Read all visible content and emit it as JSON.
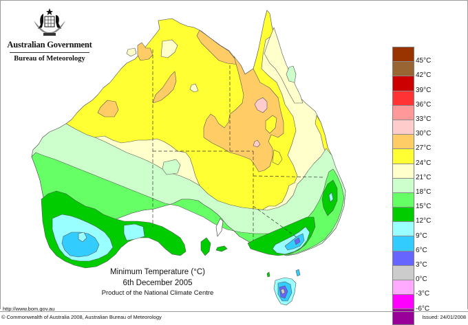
{
  "header": {
    "government": "Australian Government",
    "bureau": "Bureau of Meteorology",
    "crest_icon": "commonwealth-coat-of-arms-icon"
  },
  "title": {
    "line1": "Minimum Temperature (°C)",
    "line2": "6th December 2005",
    "line3": "Product of the National Climate Centre"
  },
  "footer": {
    "url": "http://www.bom.gov.au",
    "copyright": "© Commonwealth of Australia 2008, Australian Bureau of Meteorology",
    "issued": "Issued: 24/01/2008"
  },
  "legend": {
    "unit": "°C",
    "swatches": [
      {
        "color": "#993300"
      },
      {
        "color": "#996633"
      },
      {
        "color": "#cc0000"
      },
      {
        "color": "#ff3333"
      },
      {
        "color": "#ff9999"
      },
      {
        "color": "#ffcccc"
      },
      {
        "color": "#ffcc66"
      },
      {
        "color": "#ffff33"
      },
      {
        "color": "#ffffcc"
      },
      {
        "color": "#ccffcc"
      },
      {
        "color": "#66ff66"
      },
      {
        "color": "#00cc00"
      },
      {
        "color": "#99ffff"
      },
      {
        "color": "#33ccff"
      },
      {
        "color": "#6666ff"
      },
      {
        "color": "#cccccc"
      },
      {
        "color": "#ffaaff"
      },
      {
        "color": "#ff00ff"
      },
      {
        "color": "#990099"
      }
    ],
    "ticks": [
      "45°C",
      "42°C",
      "39°C",
      "36°C",
      "33°C",
      "30°C",
      "27°C",
      "24°C",
      "21°C",
      "18°C",
      "15°C",
      "12°C",
      "9°C",
      "6°C",
      "3°C",
      "0°C",
      "-3°C",
      "-6°C"
    ]
  },
  "map": {
    "region": "Australia",
    "variable": "Daily minimum temperature",
    "date": "6th December 2005",
    "notable_zones": [
      {
        "area": "Northern Territory / Gulf / inland Qld",
        "range": "24–27°C and 27–30°C"
      },
      {
        "area": "Central Queensland inland pocket",
        "range": "30–33°C"
      },
      {
        "area": "Southwest Western Australia",
        "range": "6–12°C"
      },
      {
        "area": "Victorian / NSW Alps",
        "range": "3–12°C"
      },
      {
        "area": "Central Tasmania",
        "range": "0–6°C"
      }
    ]
  },
  "chart_data": {
    "type": "heatmap",
    "title": "Minimum Temperature (°C)",
    "subtitle": "6th December 2005",
    "note": "Product of the National Climate Centre",
    "legend_position": "right",
    "color_scale": [
      {
        "min": 45,
        "max": null,
        "color": "#993300"
      },
      {
        "min": 42,
        "max": 45,
        "color": "#996633"
      },
      {
        "min": 39,
        "max": 42,
        "color": "#cc0000"
      },
      {
        "min": 36,
        "max": 39,
        "color": "#ff3333"
      },
      {
        "min": 33,
        "max": 36,
        "color": "#ff9999"
      },
      {
        "min": 30,
        "max": 33,
        "color": "#ffcccc"
      },
      {
        "min": 27,
        "max": 30,
        "color": "#ffcc66"
      },
      {
        "min": 24,
        "max": 27,
        "color": "#ffff33"
      },
      {
        "min": 21,
        "max": 24,
        "color": "#ffffcc"
      },
      {
        "min": 18,
        "max": 21,
        "color": "#ccffcc"
      },
      {
        "min": 15,
        "max": 18,
        "color": "#66ff66"
      },
      {
        "min": 12,
        "max": 15,
        "color": "#00cc00"
      },
      {
        "min": 9,
        "max": 12,
        "color": "#99ffff"
      },
      {
        "min": 6,
        "max": 9,
        "color": "#33ccff"
      },
      {
        "min": 3,
        "max": 6,
        "color": "#6666ff"
      },
      {
        "min": 0,
        "max": 3,
        "color": "#cccccc"
      },
      {
        "min": -3,
        "max": 0,
        "color": "#ffaaff"
      },
      {
        "min": -6,
        "max": -3,
        "color": "#ff00ff"
      },
      {
        "min": null,
        "max": -6,
        "color": "#990099"
      }
    ],
    "tick_labels": [
      "45°C",
      "42°C",
      "39°C",
      "36°C",
      "33°C",
      "30°C",
      "27°C",
      "24°C",
      "21°C",
      "18°C",
      "15°C",
      "12°C",
      "9°C",
      "6°C",
      "3°C",
      "0°C",
      "-3°C",
      "-6°C"
    ]
  }
}
